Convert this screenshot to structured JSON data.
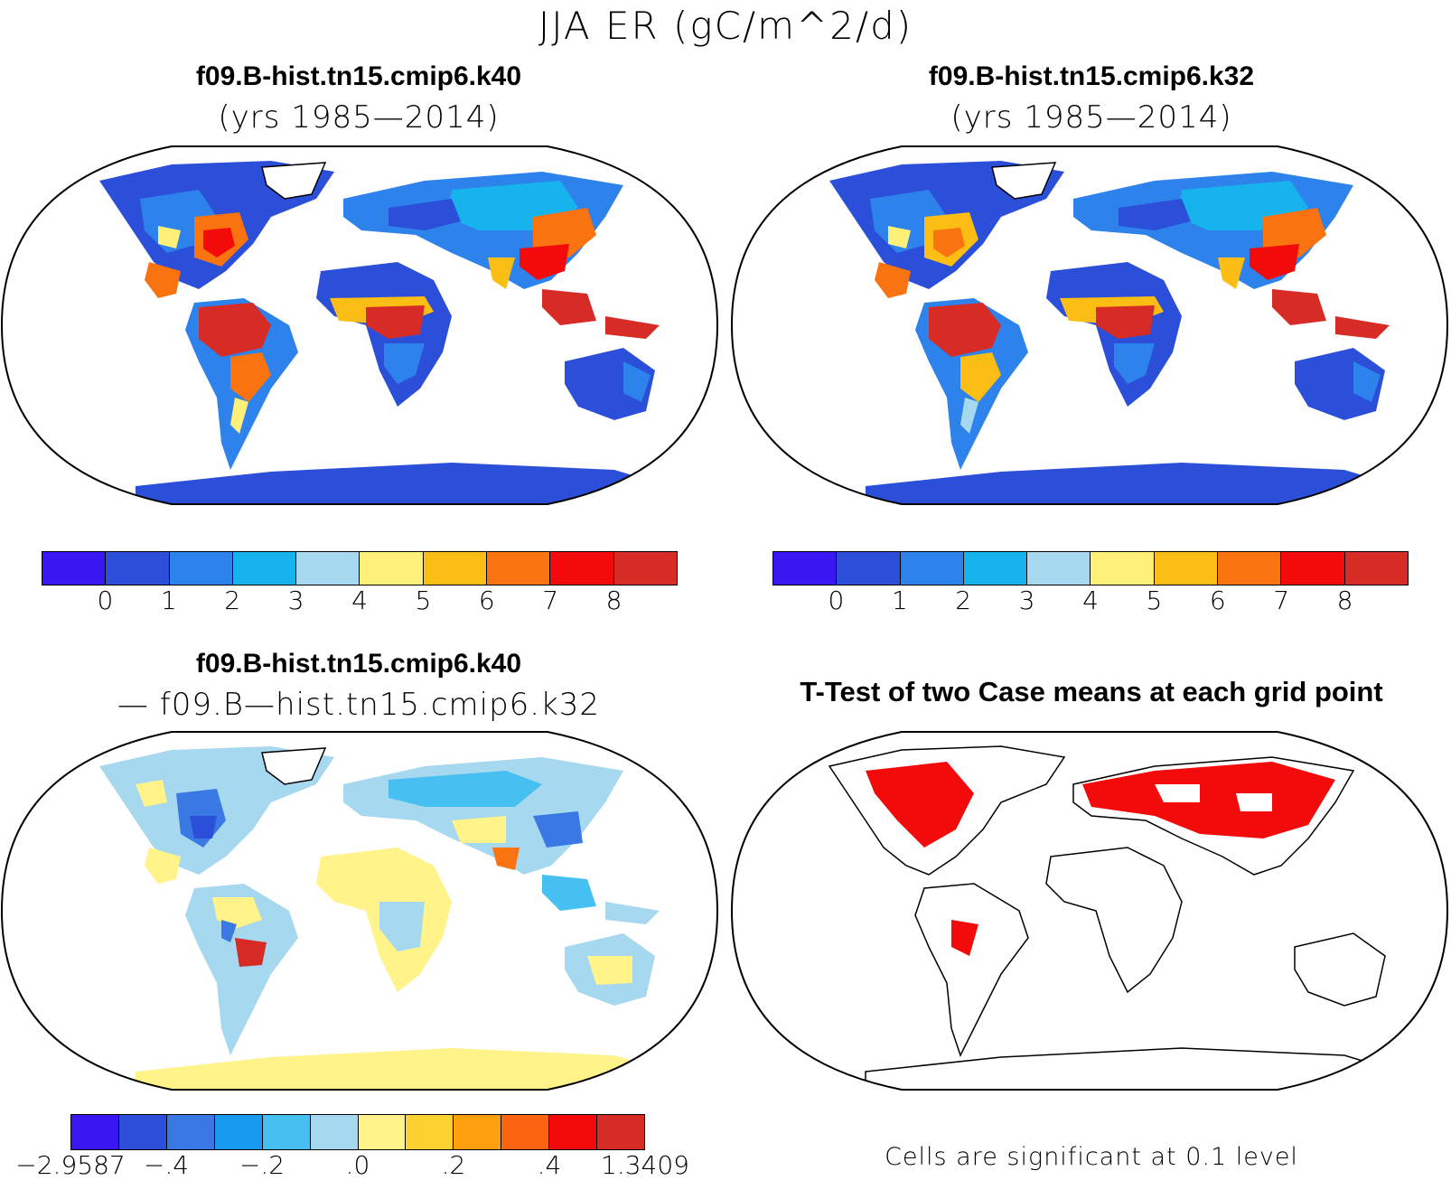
{
  "title": "JJA ER (gC/m^2/d)",
  "panels": [
    {
      "id": "case1",
      "title": "f09.B-hist.tn15.cmip6.k40",
      "subtitle": "(yrs 1985—2014)"
    },
    {
      "id": "case2",
      "title": "f09.B-hist.tn15.cmip6.k32",
      "subtitle": "(yrs 1985—2014)"
    },
    {
      "id": "diff",
      "title": "f09.B-hist.tn15.cmip6.k40",
      "subtitle": "— f09.B—hist.tn15.cmip6.k32"
    },
    {
      "id": "ttest",
      "title": "T-Test of two Case means at each grid point",
      "subtitle": ""
    }
  ],
  "colorbars": {
    "abs": {
      "colors": [
        "#3a17f2",
        "#2b4fd8",
        "#2e82eb",
        "#17b3ec",
        "#a6d8f0",
        "#fff07a",
        "#fcbd14",
        "#f97410",
        "#f30a0a",
        "#d72b25"
      ],
      "labels": [
        "0",
        "1",
        "2",
        "3",
        "4",
        "5",
        "6",
        "7",
        "8"
      ]
    },
    "diff": {
      "colors": [
        "#3a17f2",
        "#2b4fd8",
        "#3a78e3",
        "#189bef",
        "#46c0f0",
        "#a6d8f0",
        "#fff38a",
        "#fbd230",
        "#fca010",
        "#fb6410",
        "#f30a0a",
        "#d72b25"
      ],
      "labels": [
        "−2.9587",
        "−.4",
        "−.2",
        ".0",
        ".2",
        ".4",
        "1.3409"
      ]
    }
  },
  "ttest_note": "Cells are significant at 0.1 level",
  "ttest_color": "#f30a0a"
}
